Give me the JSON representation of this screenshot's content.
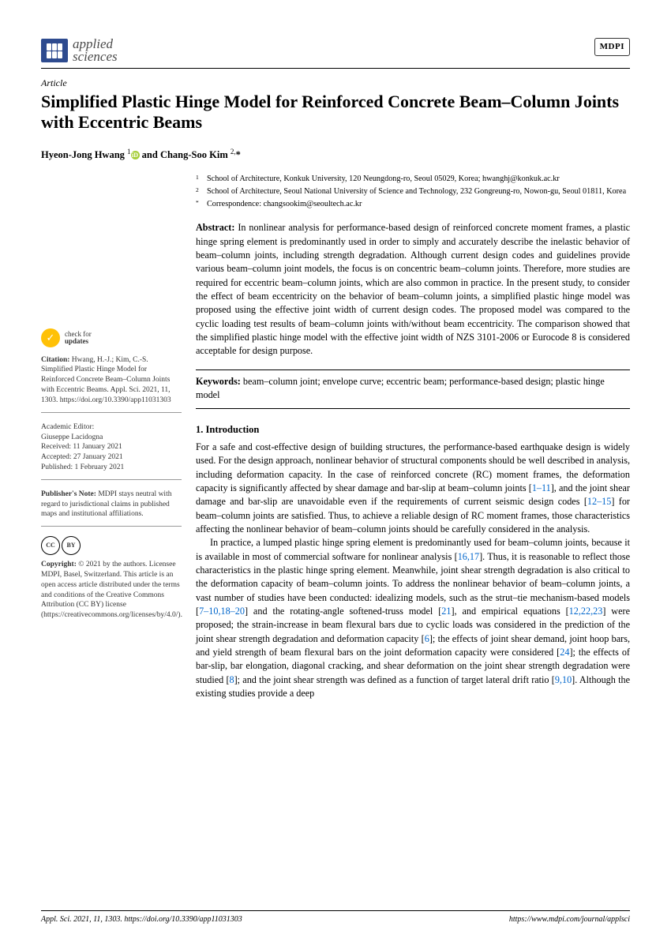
{
  "journal": {
    "line1": "applied",
    "line2": "sciences",
    "publisherBadge": "MDPI"
  },
  "article": {
    "type": "Article",
    "title": "Simplified Plastic Hinge Model for Reinforced Concrete Beam–Column Joints with Eccentric Beams",
    "authorsHtml": "Hyeon-Jong Hwang <sup>1</sup><span class='orcid'>iD</span> and Chang-Soo Kim <sup>2,</sup>*"
  },
  "affiliations": [
    {
      "sup": "1",
      "text": "School of Architecture, Konkuk University, 120 Neungdong-ro, Seoul 05029, Korea; hwanghj@konkuk.ac.kr"
    },
    {
      "sup": "2",
      "text": "School of Architecture, Seoul National University of Science and Technology, 232 Gongreung-ro, Nowon-gu, Seoul 01811, Korea"
    },
    {
      "sup": "*",
      "text": "Correspondence: changsookim@seoultech.ac.kr"
    }
  ],
  "abstract": {
    "label": "Abstract:",
    "text": "In nonlinear analysis for performance-based design of reinforced concrete moment frames, a plastic hinge spring element is predominantly used in order to simply and accurately describe the inelastic behavior of beam–column joints, including strength degradation. Although current design codes and guidelines provide various beam–column joint models, the focus is on concentric beam–column joints. Therefore, more studies are required for eccentric beam–column joints, which are also common in practice. In the present study, to consider the effect of beam eccentricity on the behavior of beam–column joints, a simplified plastic hinge model was proposed using the effective joint width of current design codes. The proposed model was compared to the cyclic loading test results of beam–column joints with/without beam eccentricity. The comparison showed that the simplified plastic hinge model with the effective joint width of NZS 3101-2006 or Eurocode 8 is considered acceptable for design purpose."
  },
  "keywords": {
    "label": "Keywords:",
    "text": "beam–column joint; envelope curve; eccentric beam; performance-based design; plastic hinge model"
  },
  "sidebar": {
    "checkUpdatesLine1": "check for",
    "checkUpdatesLine2": "updates",
    "citationLabel": "Citation:",
    "citationText": "Hwang, H.-J.; Kim, C.-S. Simplified Plastic Hinge Model for Reinforced Concrete Beam–Column Joints with Eccentric Beams. Appl. Sci. 2021, 11, 1303. https://doi.org/10.3390/app11031303",
    "editorLabel": "Academic Editor:",
    "editorName": "Giuseppe Lacidogna",
    "receivedLabel": "Received:",
    "receivedDate": "11 January 2021",
    "acceptedLabel": "Accepted:",
    "acceptedDate": "27 January 2021",
    "publishedLabel": "Published:",
    "publishedDate": "1 February 2021",
    "publisherNoteLabel": "Publisher's Note:",
    "publisherNote": "MDPI stays neutral with regard to jurisdictional claims in published maps and institutional affiliations.",
    "copyrightLabel": "Copyright:",
    "copyrightText": "© 2021 by the authors. Licensee MDPI, Basel, Switzerland. This article is an open access article distributed under the terms and conditions of the Creative Commons Attribution (CC BY) license (https://creativecommons.org/licenses/by/4.0/)."
  },
  "section1": {
    "heading": "1. Introduction",
    "para1": "For a safe and cost-effective design of building structures, the performance-based earthquake design is widely used. For the design approach, nonlinear behavior of structural components should be well described in analysis, including deformation capacity. In the case of reinforced concrete (RC) moment frames, the deformation capacity is significantly affected by shear damage and bar-slip at beam–column joints [1–11], and the joint shear damage and bar-slip are unavoidable even if the requirements of current seismic design codes [12–15] for beam–column joints are satisfied. Thus, to achieve a reliable design of RC moment frames, those characteristics affecting the nonlinear behavior of beam–column joints should be carefully considered in the analysis.",
    "para2": "In practice, a lumped plastic hinge spring element is predominantly used for beam–column joints, because it is available in most of commercial software for nonlinear analysis [16,17]. Thus, it is reasonable to reflect those characteristics in the plastic hinge spring element. Meanwhile, joint shear strength degradation is also critical to the deformation capacity of beam–column joints. To address the nonlinear behavior of beam–column joints, a vast number of studies have been conducted: idealizing models, such as the strut–tie mechanism-based models [7–10,18–20] and the rotating-angle softened-truss model [21], and empirical equations [12,22,23] were proposed; the strain-increase in beam flexural bars due to cyclic loads was considered in the prediction of the joint shear strength degradation and deformation capacity [6]; the effects of joint shear demand, joint hoop bars, and yield strength of beam flexural bars on the joint deformation capacity were considered [24]; the effects of bar-slip, bar elongation, diagonal cracking, and shear deformation on the joint shear strength degradation were studied [8]; and the joint shear strength was defined as a function of target lateral drift ratio [9,10]. Although the existing studies provide a deep"
  },
  "citations": {
    "c1_11": "1",
    "c1_11b": "11",
    "c12_15": "12",
    "c12_15b": "15",
    "c16_17": "16",
    "c16_17b": "17",
    "c7_10": "7",
    "c7_10b": "10",
    "c18_20": "18",
    "c18_20b": "20",
    "c21": "21",
    "c12": "12",
    "c22": "22",
    "c23": "23",
    "c6": "6",
    "c24": "24",
    "c8": "8",
    "c9": "9",
    "c10": "10"
  },
  "footer": {
    "left": "Appl. Sci. 2021, 11, 1303. https://doi.org/10.3390/app11031303",
    "right": "https://www.mdpi.com/journal/applsci"
  }
}
